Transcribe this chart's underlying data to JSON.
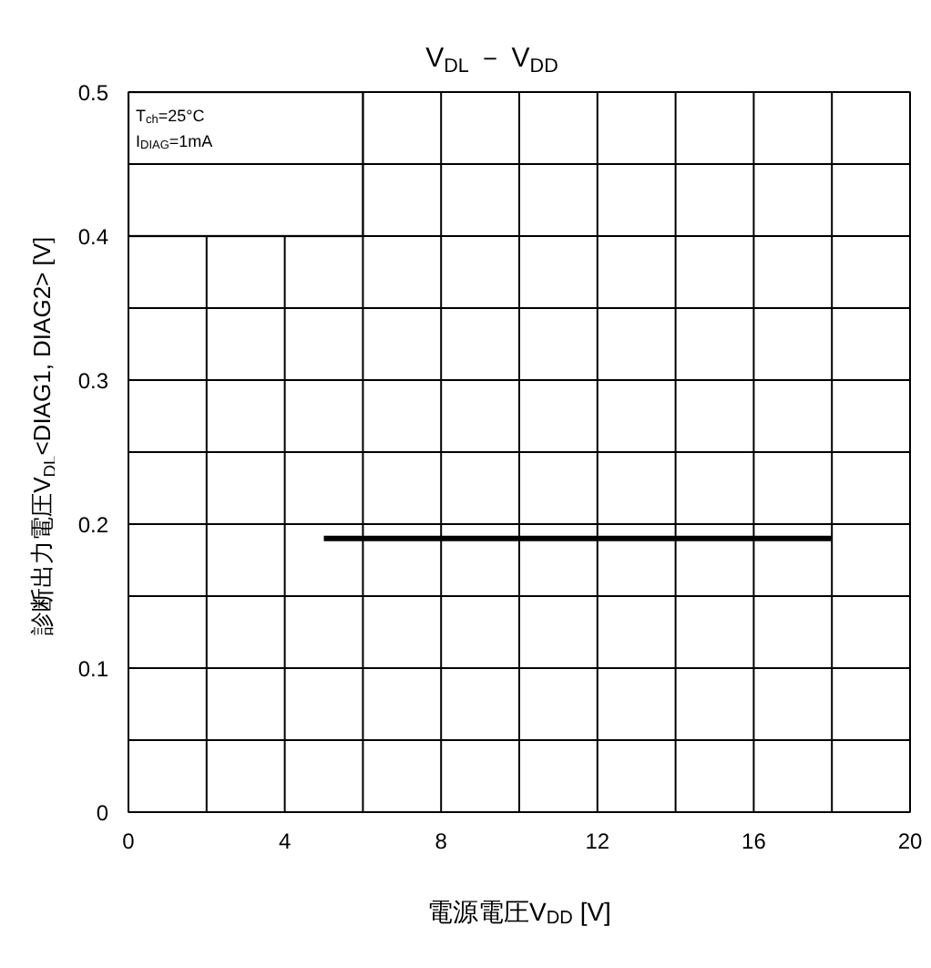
{
  "chart_data": {
    "type": "line",
    "title": "V$_{DL}$ － V$_{DD}$",
    "xlabel": "電源電圧V$_{DD}$ [V]",
    "ylabel": "診断出力電圧V$_{DL}$<DIAG1, DIAG2> [V]",
    "x": [
      5,
      18
    ],
    "series": [
      {
        "color": "#000000",
        "values": [
          0.19,
          0.19
        ]
      }
    ],
    "xlim": [
      0,
      20
    ],
    "ylim": [
      0,
      0.5
    ],
    "xticks": [
      0,
      {
        "value": 2,
        "label": null
      },
      4,
      {
        "value": 6,
        "label": null
      },
      8,
      {
        "value": 10,
        "label": null
      },
      12,
      {
        "value": 14,
        "label": null
      },
      16,
      {
        "value": 18,
        "label": null
      },
      20
    ],
    "yticks": [
      0,
      {
        "value": 0.05,
        "label": null
      },
      0.1,
      {
        "value": 0.15,
        "label": null
      },
      0.2,
      {
        "value": 0.25,
        "label": null
      },
      0.3,
      {
        "value": 0.35,
        "label": null
      },
      0.4,
      {
        "value": 0.45,
        "label": null
      },
      0.5
    ],
    "grid": true,
    "marker": "none",
    "line_style": "solid",
    "annotations": [
      "T$_{ch}$=25°C",
      "I$_{DIAG}$=1mA"
    ]
  }
}
